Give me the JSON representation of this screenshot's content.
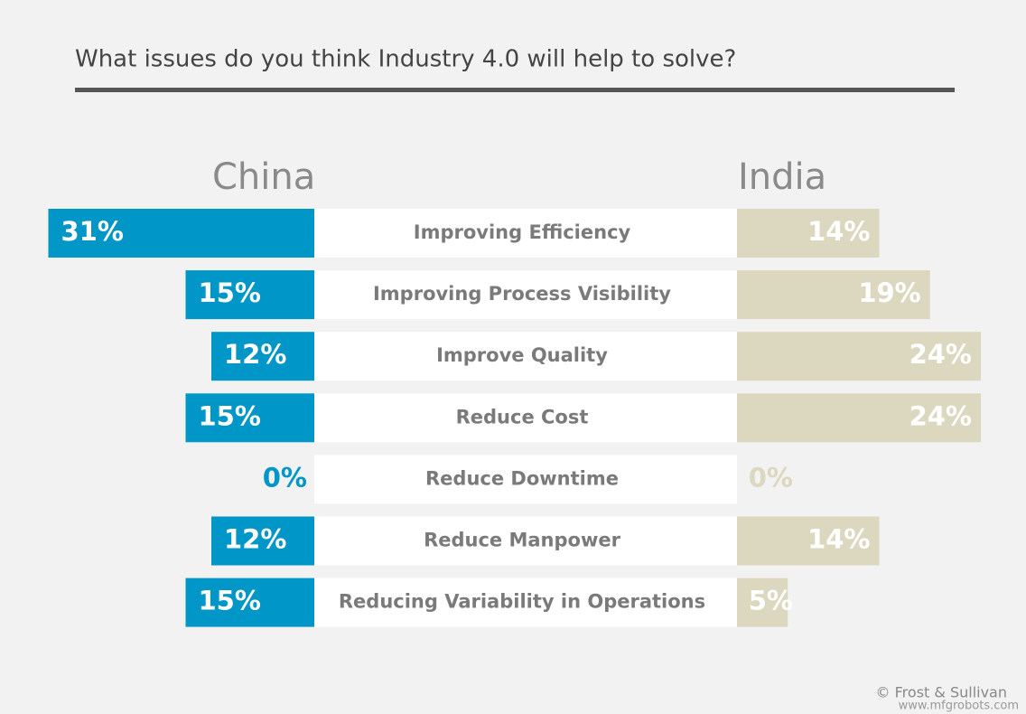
{
  "chart_data": {
    "type": "butterfly_bar",
    "title": "What issues do you think Industry 4.0 will help to solve?",
    "categories": [
      "Improving Efficiency",
      "Improving Process Visibility",
      "Improve Quality",
      "Reduce Cost",
      "Reduce Downtime",
      "Reduce Manpower",
      "Reducing Variability in Operations"
    ],
    "series": [
      {
        "name": "China",
        "color": "#0096c8",
        "values": [
          31,
          15,
          12,
          15,
          0,
          12,
          15
        ],
        "value_labels": [
          "31%",
          "15%",
          "12%",
          "15%",
          "0%",
          "12%",
          "15%"
        ]
      },
      {
        "name": "India",
        "color": "#dcd8c0",
        "values": [
          14,
          19,
          24,
          24,
          0,
          14,
          5
        ],
        "value_labels": [
          "14%",
          "19%",
          "24%",
          "24%",
          "0%",
          "14%",
          "5%"
        ]
      }
    ],
    "source": "© Frost & Sullivan",
    "watermark": "www.mfgrobots.com"
  }
}
